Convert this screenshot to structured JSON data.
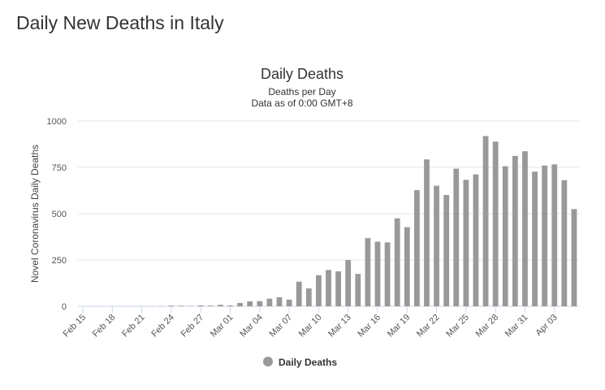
{
  "page_title": "Daily New Deaths in Italy",
  "chart_data": {
    "type": "bar",
    "title": "Daily Deaths",
    "subtitle": [
      "Deaths per Day",
      "Data as of 0:00 GMT+8"
    ],
    "ylabel": "Novel Coronavirus Daily Deaths",
    "categories": [
      "Feb 15",
      null,
      null,
      "Feb 18",
      null,
      null,
      "Feb 21",
      null,
      null,
      "Feb 24",
      null,
      null,
      "Feb 27",
      null,
      null,
      "Mar 01",
      null,
      null,
      "Mar 04",
      null,
      null,
      "Mar 07",
      null,
      null,
      "Mar 10",
      null,
      null,
      "Mar 13",
      null,
      null,
      "Mar 16",
      null,
      null,
      "Mar 19",
      null,
      null,
      "Mar 22",
      null,
      null,
      "Mar 25",
      null,
      null,
      "Mar 28",
      null,
      null,
      "Mar 31",
      null,
      null,
      "Apr 03",
      null,
      null
    ],
    "series": [
      {
        "name": "Daily Deaths",
        "color": "#999999",
        "values": [
          0,
          0,
          0,
          0,
          0,
          0,
          1,
          1,
          1,
          4,
          3,
          2,
          5,
          4,
          8,
          5,
          18,
          27,
          28,
          41,
          49,
          36,
          133,
          97,
          168,
          196,
          189,
          250,
          175,
          368,
          349,
          345,
          475,
          427,
          627,
          793,
          651,
          601,
          743,
          683,
          712,
          919,
          889,
          756,
          812,
          837,
          727,
          760,
          766,
          681,
          525
        ]
      }
    ],
    "ylim": [
      0,
      1000
    ],
    "yticks": [
      0,
      250,
      500,
      750,
      1000
    ],
    "grid": true
  }
}
